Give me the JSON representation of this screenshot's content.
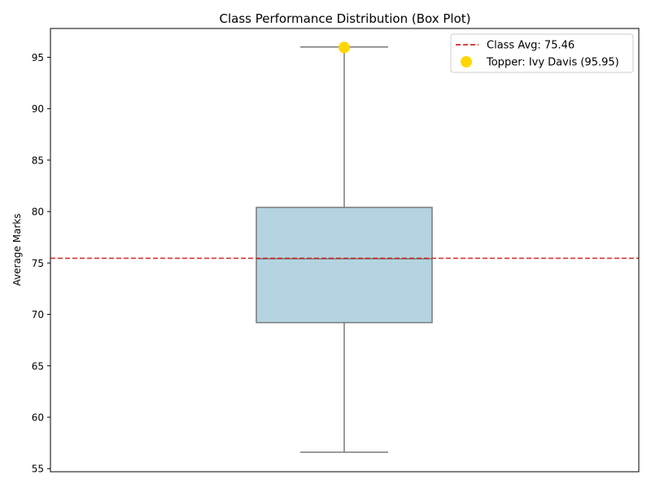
{
  "chart_data": {
    "type": "box",
    "title": "Class Performance Distribution (Box Plot)",
    "xlabel": "",
    "ylabel": "Average Marks",
    "ylim": [
      54.7,
      97.8
    ],
    "yticks": [
      55,
      60,
      65,
      70,
      75,
      80,
      85,
      90,
      95
    ],
    "grid": false,
    "legend_position": "top-right",
    "box": {
      "min": 56.6,
      "q1": 69.2,
      "median": 75.4,
      "q3": 80.4,
      "max": 96.0,
      "fill_color": "#b3d4e0",
      "line_color": "#7a7a7a"
    },
    "average_line": {
      "value": 75.46,
      "label": "Class Avg: 75.46",
      "color": "#d62728"
    },
    "topper": {
      "value": 95.95,
      "label": "Topper: Ivy Davis (95.95)",
      "color": "#ffd700"
    }
  }
}
